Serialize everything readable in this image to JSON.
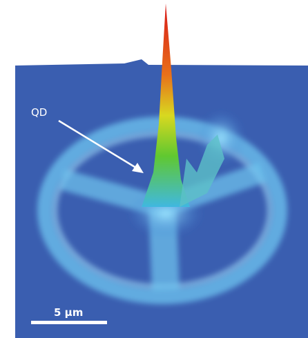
{
  "annotation": {
    "label": "QD"
  },
  "scale_bar": {
    "label": "5 μm"
  }
}
